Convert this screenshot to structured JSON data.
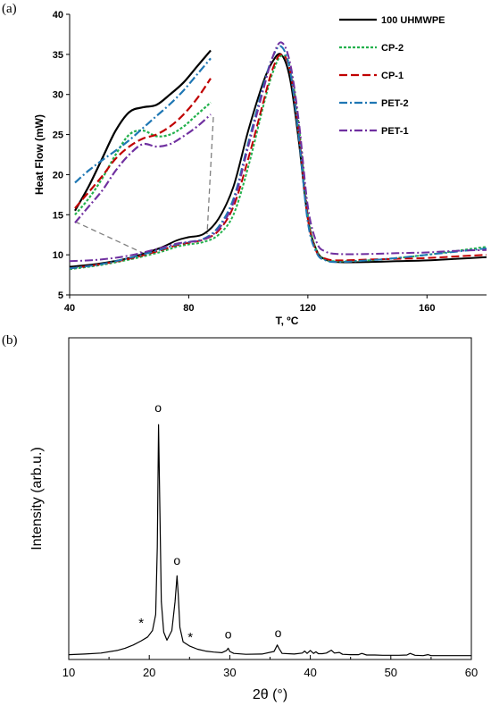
{
  "panels": {
    "a_label": "(a)",
    "b_label": "(b)"
  },
  "chart_data": [
    {
      "type": "line",
      "xlabel": "T, ºC",
      "ylabel": "Heat Flow (mW)",
      "xlim": [
        40,
        180
      ],
      "ylim": [
        5,
        40
      ],
      "xticks": [
        "40",
        "80",
        "120",
        "160"
      ],
      "yticks": [
        "5",
        "10",
        "15",
        "20",
        "25",
        "30",
        "35",
        "40"
      ],
      "legend_position": "top-right",
      "grid": false,
      "series": [
        {
          "name": "100 UHMWPE",
          "color": "#000000",
          "dash": "solid",
          "x": [
            40,
            50,
            60,
            70,
            76,
            80,
            85,
            90,
            95,
            100,
            105,
            108,
            111,
            114,
            117,
            120,
            123,
            126,
            130,
            140,
            150,
            160,
            170,
            180
          ],
          "y": [
            8.5,
            8.9,
            9.6,
            10.8,
            11.8,
            12.2,
            12.6,
            14.5,
            18.5,
            25.5,
            31.5,
            34.0,
            35.0,
            32.0,
            24.0,
            14.5,
            10.5,
            9.4,
            9.1,
            9.1,
            9.2,
            9.3,
            9.5,
            9.7
          ]
        },
        {
          "name": "CP-2",
          "color": "#22b14c",
          "dash": "3,2",
          "x": [
            40,
            50,
            60,
            70,
            76,
            80,
            85,
            90,
            95,
            100,
            105,
            108,
            111,
            114,
            117,
            120,
            123,
            126,
            130,
            140,
            150,
            160,
            170,
            180
          ],
          "y": [
            8.2,
            8.7,
            9.4,
            10.3,
            11.0,
            11.3,
            11.6,
            12.5,
            15.0,
            21.0,
            28.5,
            32.5,
            34.8,
            33.5,
            26.0,
            15.0,
            10.5,
            9.4,
            9.2,
            9.3,
            9.6,
            10.0,
            10.5,
            11.0
          ]
        },
        {
          "name": "CP-1",
          "color": "#c00000",
          "dash": "9,4",
          "x": [
            40,
            50,
            60,
            70,
            76,
            80,
            85,
            90,
            95,
            100,
            105,
            108,
            111,
            114,
            117,
            120,
            123,
            126,
            130,
            140,
            150,
            160,
            170,
            180
          ],
          "y": [
            8.3,
            8.8,
            9.5,
            10.5,
            11.2,
            11.5,
            11.9,
            13.0,
            16.0,
            22.0,
            29.0,
            33.0,
            35.0,
            33.0,
            25.0,
            14.5,
            10.3,
            9.5,
            9.3,
            9.4,
            9.5,
            9.6,
            9.8,
            10.0
          ]
        },
        {
          "name": "PET-2",
          "color": "#1f77b4",
          "dash": "9,3,2,3",
          "x": [
            40,
            50,
            60,
            70,
            76,
            80,
            85,
            90,
            95,
            100,
            105,
            108,
            111,
            114,
            117,
            120,
            123,
            126,
            130,
            140,
            150,
            160,
            170,
            180
          ],
          "y": [
            8.3,
            8.8,
            9.6,
            10.6,
            11.3,
            11.6,
            12.0,
            13.5,
            17.0,
            24.0,
            31.0,
            34.5,
            36.0,
            33.0,
            24.5,
            14.0,
            10.2,
            9.3,
            9.1,
            9.3,
            9.6,
            10.0,
            10.4,
            10.8
          ]
        },
        {
          "name": "PET-1",
          "color": "#7030a0",
          "dash": "9,3,2,3",
          "x": [
            40,
            50,
            60,
            70,
            76,
            80,
            85,
            90,
            95,
            100,
            105,
            108,
            111,
            114,
            117,
            120,
            123,
            126,
            130,
            140,
            150,
            160,
            170,
            180
          ],
          "y": [
            9.2,
            9.4,
            9.9,
            10.8,
            11.4,
            11.6,
            11.9,
            13.2,
            16.5,
            23.5,
            30.5,
            34.5,
            36.5,
            34.0,
            26.5,
            16.0,
            11.5,
            10.4,
            10.1,
            10.1,
            10.2,
            10.3,
            10.5,
            10.6
          ]
        }
      ],
      "inset": {
        "comment_free": true,
        "x": [
          0,
          0.1,
          0.2,
          0.3,
          0.4,
          0.5,
          0.6,
          0.7,
          0.8,
          0.9,
          1.0
        ],
        "series_y": [
          [
            15.5,
            18.5,
            22.0,
            25.5,
            27.8,
            28.4,
            28.7,
            30.0,
            31.5,
            33.5,
            35.5
          ],
          [
            15.0,
            17.0,
            19.5,
            22.5,
            25.0,
            25.5,
            24.8,
            25.0,
            26.0,
            27.5,
            29.0
          ],
          [
            15.8,
            17.8,
            19.8,
            22.0,
            23.5,
            24.5,
            25.0,
            26.0,
            27.5,
            29.5,
            32.0
          ],
          [
            19.0,
            20.5,
            21.8,
            23.0,
            24.3,
            25.8,
            27.3,
            28.8,
            30.5,
            32.5,
            34.5
          ],
          [
            14.0,
            16.0,
            18.0,
            20.5,
            22.5,
            23.8,
            23.5,
            23.8,
            24.8,
            26.0,
            27.5
          ]
        ],
        "x_range_data": [
          50,
          85
        ]
      }
    },
    {
      "type": "line",
      "xlabel": "2θ (°)",
      "ylabel": "Intensity (arb.u.)",
      "xlim": [
        10,
        60
      ],
      "ylim": [
        0,
        100
      ],
      "xticks": [
        "10",
        "20",
        "30",
        "40",
        "50",
        "60"
      ],
      "grid": false,
      "series": [
        {
          "name": "",
          "color": "#000000",
          "dash": "solid",
          "x": [
            10,
            12,
            14,
            16,
            17,
            18,
            19,
            19.8,
            20.4,
            20.8,
            21.0,
            21.15,
            21.3,
            21.5,
            21.8,
            22.2,
            22.8,
            23.2,
            23.45,
            23.6,
            23.8,
            24.2,
            25,
            26,
            27,
            28,
            29,
            29.6,
            29.8,
            30.0,
            30.5,
            32,
            34,
            35.5,
            35.9,
            36.1,
            36.5,
            38,
            39,
            39.3,
            39.6,
            40,
            40.4,
            40.7,
            41,
            41.5,
            42,
            42.6,
            43,
            43.6,
            44,
            45,
            46,
            46.4,
            47,
            48,
            49,
            50,
            51,
            52,
            52.4,
            53,
            54,
            54.6,
            55,
            56,
            57,
            58,
            59,
            60
          ],
          "y": [
            1.5,
            1.7,
            2.0,
            2.8,
            3.5,
            4.5,
            5.8,
            7.0,
            9.0,
            14.0,
            35.0,
            73.0,
            50.0,
            18.0,
            8.5,
            6.0,
            9.0,
            18.0,
            26.0,
            20.0,
            10.0,
            5.5,
            4.2,
            3.2,
            2.6,
            2.3,
            2.1,
            2.8,
            3.5,
            2.5,
            1.9,
            1.6,
            1.7,
            2.5,
            4.5,
            3.5,
            1.9,
            1.7,
            2.0,
            2.6,
            1.9,
            2.8,
            1.9,
            2.4,
            1.8,
            1.8,
            2.0,
            2.9,
            2.0,
            2.2,
            1.6,
            1.5,
            1.5,
            1.9,
            1.4,
            1.4,
            1.3,
            1.3,
            1.3,
            1.4,
            1.9,
            1.3,
            1.2,
            1.5,
            1.2,
            1.2,
            1.2,
            1.2,
            1.2,
            1.2
          ]
        }
      ],
      "annotations": [
        {
          "text": "o",
          "x": 21.1,
          "y": 77.0
        },
        {
          "text": "o",
          "x": 23.45,
          "y": 29.5
        },
        {
          "text": "o",
          "x": 29.8,
          "y": 6.5
        },
        {
          "text": "o",
          "x": 36.0,
          "y": 7.0
        },
        {
          "text": "*",
          "x": 19.0,
          "y": 10.0
        },
        {
          "text": "*",
          "x": 25.1,
          "y": 5.5
        }
      ]
    }
  ]
}
